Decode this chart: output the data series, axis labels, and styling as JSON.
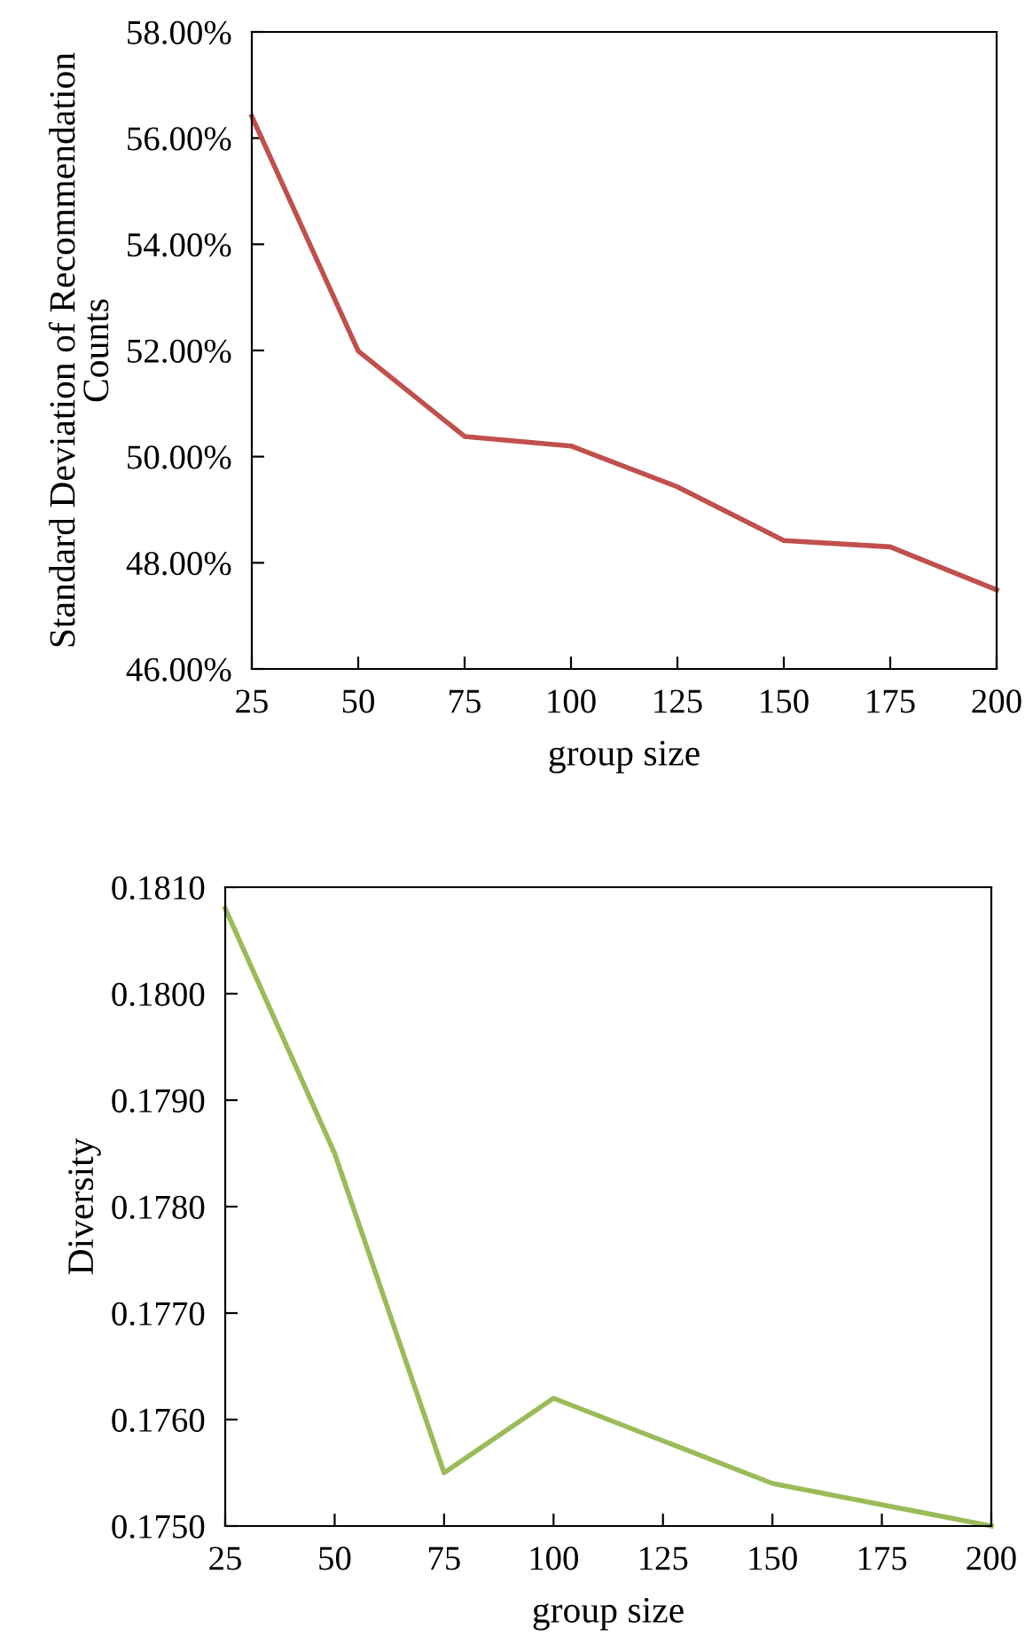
{
  "chart_data": [
    {
      "type": "line",
      "xlabel": "group size",
      "ylabel": "Standard Deviation of Recommendation\nCounts",
      "x": [
        25,
        50,
        75,
        100,
        125,
        150,
        175,
        200
      ],
      "series": [
        {
          "color": "#c0504d",
          "values": [
            56.41,
            51.99,
            50.38,
            50.2,
            49.43,
            48.42,
            48.3,
            47.49
          ]
        }
      ],
      "xlim": [
        25,
        200
      ],
      "xticks": [
        25,
        50,
        75,
        100,
        125,
        150,
        175,
        200
      ],
      "ylim": [
        46,
        58
      ],
      "yticks": [
        {
          "value": 46,
          "label": "46.00%"
        },
        {
          "value": 48,
          "label": "48.00%"
        },
        {
          "value": 50,
          "label": "50.00%"
        },
        {
          "value": 52,
          "label": "52.00%"
        },
        {
          "value": 54,
          "label": "54.00%"
        },
        {
          "value": 56,
          "label": "56.00%"
        },
        {
          "value": 58,
          "label": "58.00%"
        }
      ],
      "grid": false,
      "legend": false,
      "marker": "none",
      "line_style": "solid"
    },
    {
      "type": "line",
      "xlabel": "group size",
      "ylabel": "Diversity",
      "x": [
        25,
        50,
        75,
        100,
        125,
        150,
        175,
        200
      ],
      "series": [
        {
          "color": "#9bbb59",
          "values": [
            0.1808,
            0.1785,
            0.1755,
            0.1762,
            0.1758,
            0.1754,
            0.1752,
            0.175
          ]
        }
      ],
      "xlim": [
        25,
        200
      ],
      "xticks": [
        25,
        50,
        75,
        100,
        125,
        150,
        175,
        200
      ],
      "ylim": [
        0.175,
        0.181
      ],
      "yticks": [
        {
          "value": 0.175,
          "label": "0.1750"
        },
        {
          "value": 0.176,
          "label": "0.1760"
        },
        {
          "value": 0.177,
          "label": "0.1770"
        },
        {
          "value": 0.178,
          "label": "0.1780"
        },
        {
          "value": 0.179,
          "label": "0.1790"
        },
        {
          "value": 0.18,
          "label": "0.1800"
        },
        {
          "value": 0.181,
          "label": "0.1810"
        }
      ],
      "grid": false,
      "legend": false,
      "marker": "none",
      "line_style": "solid"
    }
  ]
}
